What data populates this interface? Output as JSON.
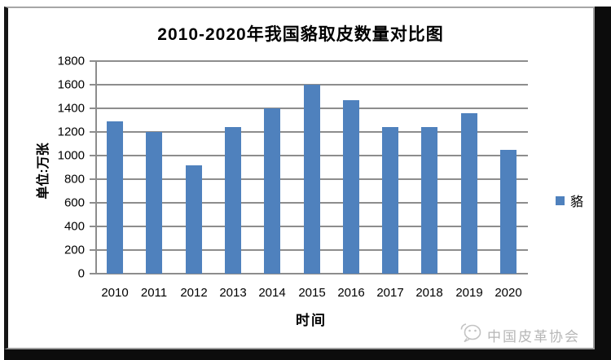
{
  "chart_data": {
    "type": "bar",
    "title": "2010-2020年我国貉取皮数量对比图",
    "categories": [
      "2010",
      "2011",
      "2012",
      "2013",
      "2014",
      "2015",
      "2016",
      "2017",
      "2018",
      "2019",
      "2020"
    ],
    "series": [
      {
        "name": "貉",
        "values": [
          1290,
          1200,
          920,
          1240,
          1400,
          1600,
          1470,
          1240,
          1240,
          1360,
          1050
        ]
      }
    ],
    "xlabel": "时间",
    "ylabel": "单位:万张",
    "ylim": [
      0,
      1800
    ],
    "yticks": [
      0,
      200,
      400,
      600,
      800,
      1000,
      1200,
      1400,
      1600,
      1800
    ],
    "grid": true,
    "legend_position": "right",
    "bar_color": "#4f81bd",
    "gridline_color": "#8d8d8d"
  },
  "legend": {
    "label": "貉",
    "swatch_color": "#4f81bd"
  },
  "watermark": {
    "text": "中国皮革协会",
    "icon": "wechat-icon",
    "color": "#b6b6b6"
  }
}
